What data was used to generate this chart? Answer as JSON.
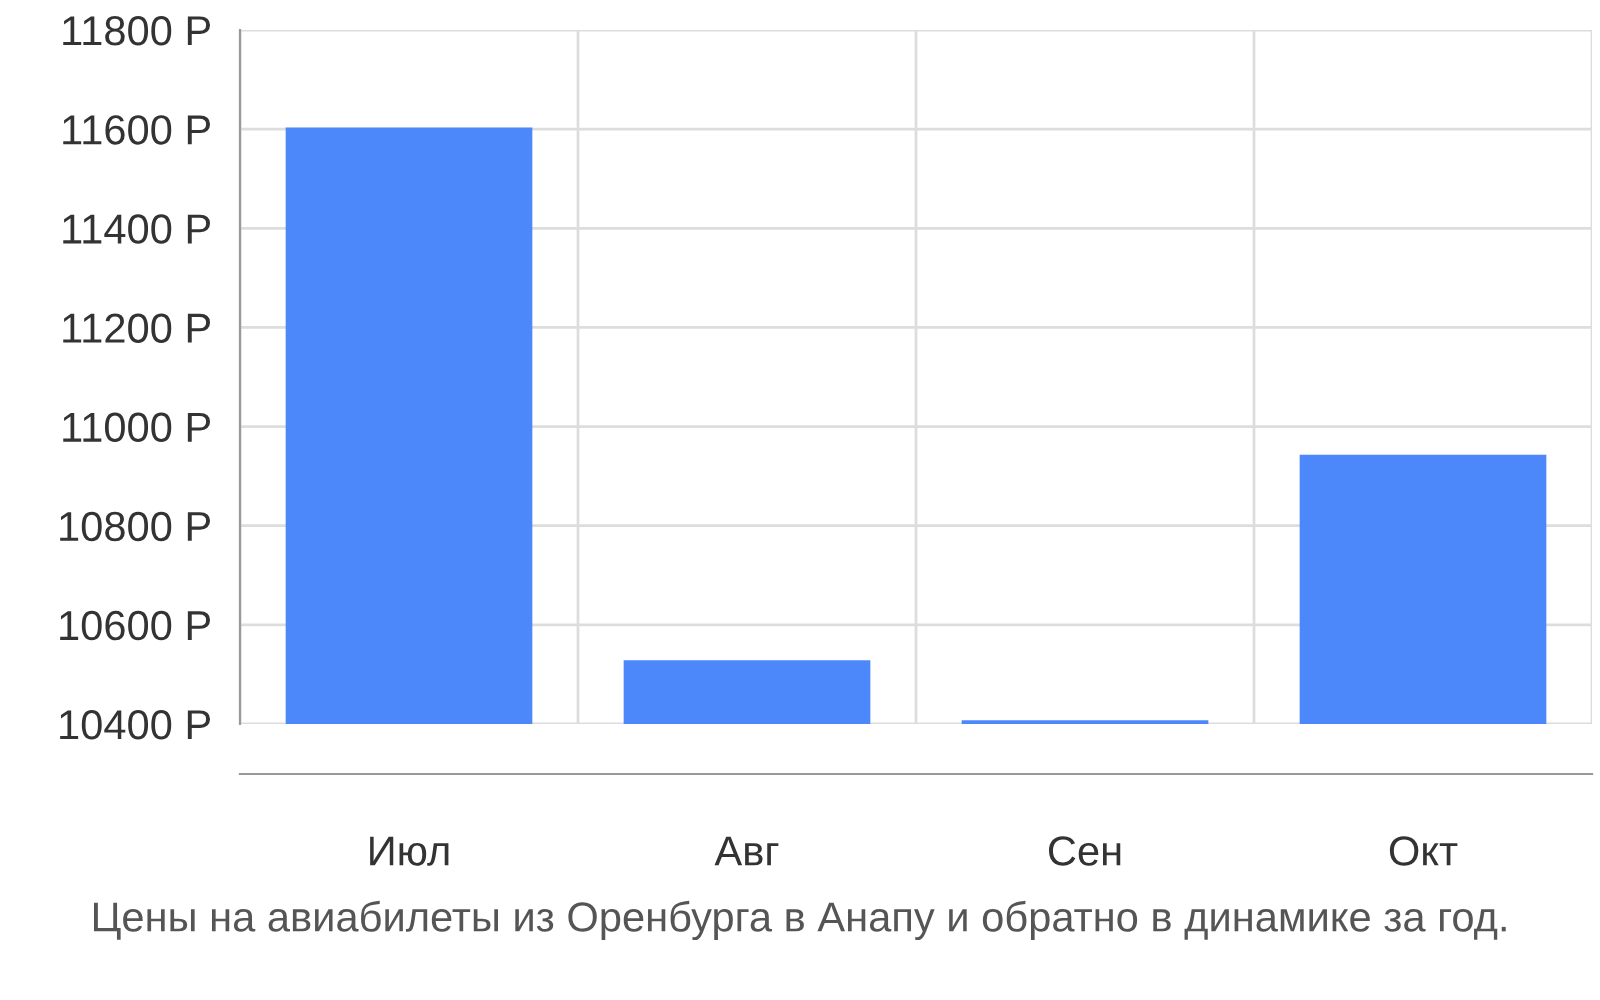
{
  "chart_data": {
    "type": "bar",
    "categories": [
      "Июл",
      "Авг",
      "Сен",
      "Окт"
    ],
    "values": [
      11600,
      10525,
      10404,
      10940
    ],
    "color": "#4d88fb",
    "ylim": [
      10400,
      11800
    ],
    "yticks": [
      {
        "value": 10400,
        "label": "10400 Р"
      },
      {
        "value": 10600,
        "label": "10600 Р"
      },
      {
        "value": 10800,
        "label": "10800 Р"
      },
      {
        "value": 11000,
        "label": "11000 Р"
      },
      {
        "value": 11200,
        "label": "11200 Р"
      },
      {
        "value": 11400,
        "label": "11400 Р"
      },
      {
        "value": 11600,
        "label": "11600 Р"
      },
      {
        "value": 11800,
        "label": "11800 Р"
      }
    ],
    "grid": true,
    "annotations": [
      "Цены на авиабилеты из Оренбурга в Анапу и обратно в динамике за год."
    ]
  }
}
